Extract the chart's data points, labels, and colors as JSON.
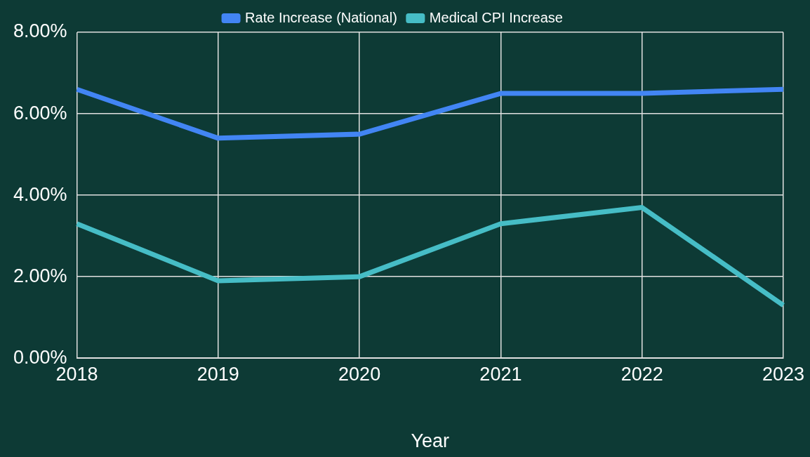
{
  "chart_data": {
    "type": "line",
    "xlabel": "Year",
    "categories": [
      "2018",
      "2019",
      "2020",
      "2021",
      "2022",
      "2023"
    ],
    "series": [
      {
        "name": "Rate Increase (National)",
        "color": "#4285f4",
        "values": [
          6.6,
          5.4,
          5.5,
          6.5,
          6.5,
          6.6
        ]
      },
      {
        "name": "Medical CPI Increase",
        "color": "#46bdc6",
        "values": [
          3.3,
          1.9,
          2.0,
          3.3,
          3.7,
          1.3
        ]
      }
    ],
    "ylim": [
      0,
      8
    ],
    "yticks": [
      {
        "value": 0,
        "label": "0.00%"
      },
      {
        "value": 2,
        "label": "2.00%"
      },
      {
        "value": 4,
        "label": "4.00%"
      },
      {
        "value": 6,
        "label": "6.00%"
      },
      {
        "value": 8,
        "label": "8.00%"
      }
    ],
    "grid": true,
    "legend": "top",
    "marker": "none",
    "line_style": "solid"
  }
}
